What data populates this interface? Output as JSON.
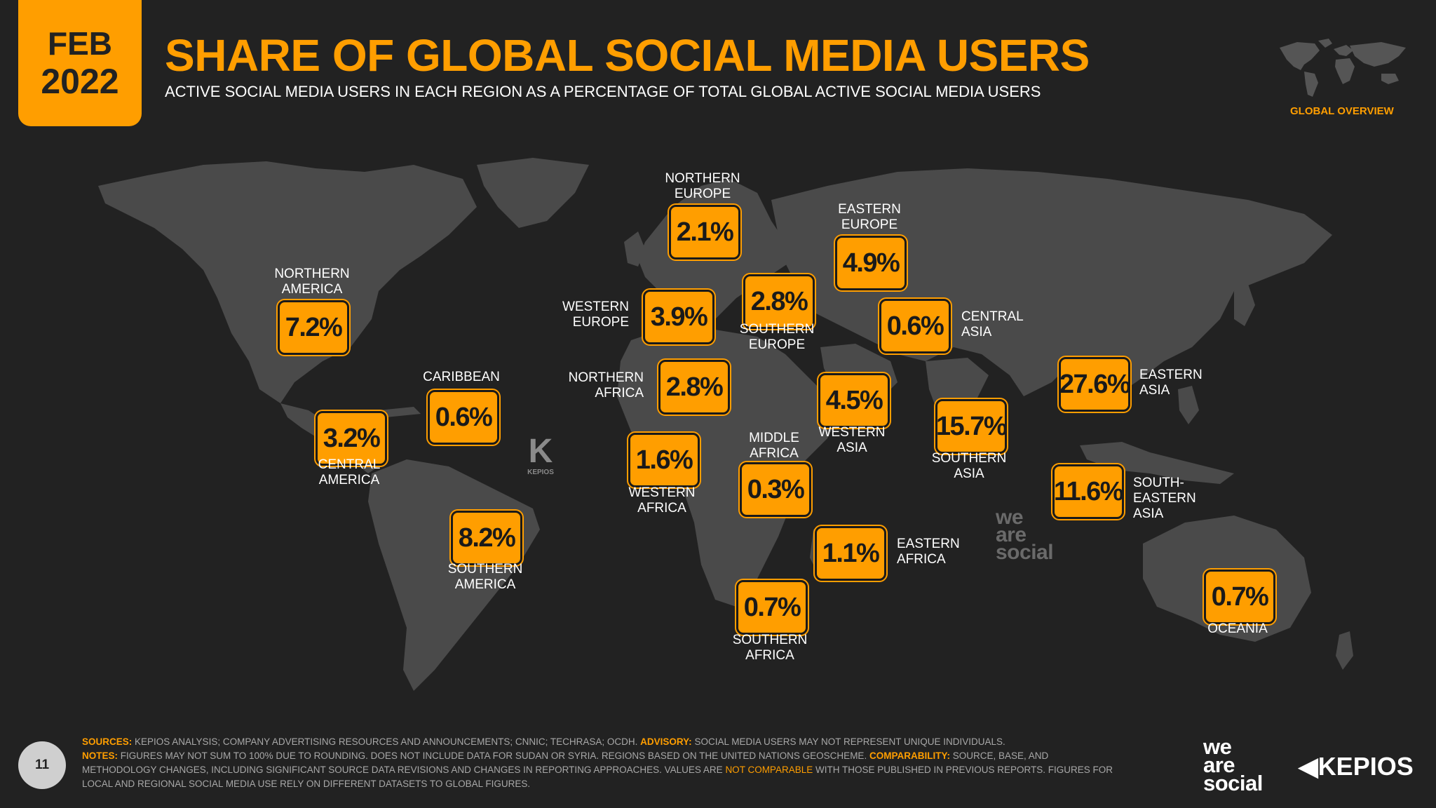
{
  "header": {
    "month": "FEB",
    "year": "2022",
    "title": "SHARE OF GLOBAL SOCIAL MEDIA USERS",
    "subtitle": "ACTIVE SOCIAL MEDIA USERS IN EACH REGION AS A PERCENTAGE OF TOTAL GLOBAL ACTIVE SOCIAL MEDIA USERS",
    "overview_label": "GLOBAL OVERVIEW"
  },
  "colors": {
    "accent": "#ff9e00",
    "background": "#222222",
    "land": "#4a4a4a"
  },
  "regions": [
    {
      "id": "northern-america",
      "name": "NORTHERN\nAMERICA",
      "value": "7.2%"
    },
    {
      "id": "central-america",
      "name": "CENTRAL\nAMERICA",
      "value": "3.2%"
    },
    {
      "id": "caribbean",
      "name": "CARIBBEAN",
      "value": "0.6%"
    },
    {
      "id": "southern-america",
      "name": "SOUTHERN\nAMERICA",
      "value": "8.2%"
    },
    {
      "id": "northern-europe",
      "name": "NORTHERN\nEUROPE",
      "value": "2.1%"
    },
    {
      "id": "western-europe",
      "name": "WESTERN\nEUROPE",
      "value": "3.9%"
    },
    {
      "id": "southern-europe",
      "name": "SOUTHERN\nEUROPE",
      "value": "2.8%"
    },
    {
      "id": "eastern-europe",
      "name": "EASTERN\nEUROPE",
      "value": "4.9%"
    },
    {
      "id": "northern-africa",
      "name": "NORTHERN\nAFRICA",
      "value": "2.8%"
    },
    {
      "id": "western-africa",
      "name": "WESTERN\nAFRICA",
      "value": "1.6%"
    },
    {
      "id": "middle-africa",
      "name": "MIDDLE\nAFRICA",
      "value": "0.3%"
    },
    {
      "id": "eastern-africa",
      "name": "EASTERN\nAFRICA",
      "value": "1.1%"
    },
    {
      "id": "southern-africa",
      "name": "SOUTHERN\nAFRICA",
      "value": "0.7%"
    },
    {
      "id": "western-asia",
      "name": "WESTERN\nASIA",
      "value": "4.5%"
    },
    {
      "id": "central-asia",
      "name": "CENTRAL\nASIA",
      "value": "0.6%"
    },
    {
      "id": "southern-asia",
      "name": "SOUTHERN\nASIA",
      "value": "15.7%"
    },
    {
      "id": "eastern-asia",
      "name": "EASTERN\nASIA",
      "value": "27.6%"
    },
    {
      "id": "south-eastern-asia",
      "name": "SOUTH-EASTERN\nASIA",
      "value": "11.6%"
    },
    {
      "id": "oceania",
      "name": "OCEANIA",
      "value": "0.7%"
    }
  ],
  "watermarks": {
    "kepios_small": "KEPIOS",
    "was_line1": "we",
    "was_line2": "are",
    "was_line3": "social"
  },
  "footer": {
    "sources_label": "SOURCES:",
    "sources_text": " KEPIOS ANALYSIS; COMPANY ADVERTISING RESOURCES AND ANNOUNCEMENTS; CNNIC; TECHRASA; OCDH. ",
    "advisory_label": "ADVISORY:",
    "advisory_text": " SOCIAL MEDIA USERS MAY NOT REPRESENT UNIQUE INDIVIDUALS.",
    "notes_label": "NOTES:",
    "notes_text": " FIGURES MAY NOT SUM TO 100% DUE TO ROUNDING. DOES NOT INCLUDE DATA FOR SUDAN OR SYRIA. REGIONS BASED ON THE UNITED NATIONS GEOSCHEME. ",
    "comparability_label": "COMPARABILITY:",
    "comparability_text": " SOURCE, BASE, AND METHODOLOGY CHANGES, INCLUDING SIGNIFICANT SOURCE DATA REVISIONS AND CHANGES IN REPORTING APPROACHES. VALUES ARE ",
    "not_comparable": "NOT COMPARABLE",
    "comparability_tail": " WITH THOSE PUBLISHED IN PREVIOUS REPORTS. FIGURES FOR LOCAL AND REGIONAL SOCIAL MEDIA USE RELY ON DIFFERENT DATASETS TO GLOBAL FIGURES.",
    "page_number": "11"
  },
  "logos": {
    "was_line1": "we",
    "was_line2": "are",
    "was_line3": "social",
    "kepios": "KEPIOS"
  }
}
